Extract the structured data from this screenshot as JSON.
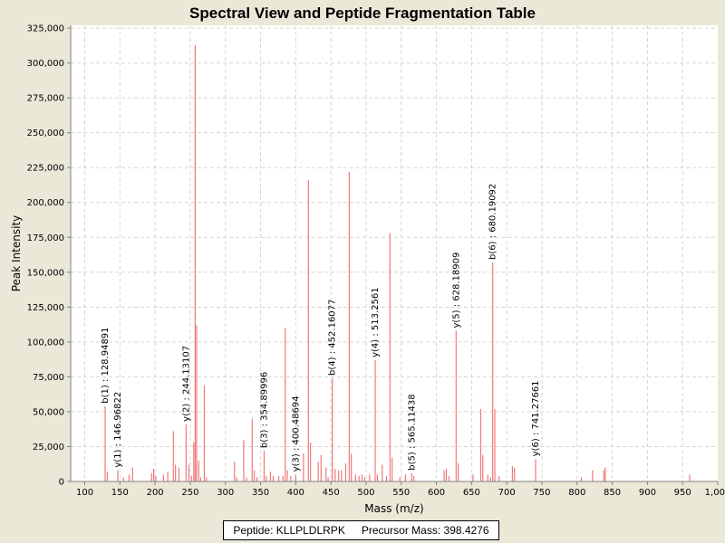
{
  "chart_data": {
    "type": "bar",
    "title": "Spectral View and Peptide Fragmentation Table",
    "xlabel": "Mass (m/z)",
    "ylabel": "Peak Intensity",
    "xlim": [
      80,
      1000
    ],
    "ylim": [
      0,
      327000
    ],
    "x_ticks": [
      100,
      150,
      200,
      250,
      300,
      350,
      400,
      450,
      500,
      550,
      600,
      650,
      700,
      750,
      800,
      850,
      900,
      950,
      1000
    ],
    "x_tick_labels": [
      "100",
      "150",
      "200",
      "250",
      "300",
      "350",
      "400",
      "450",
      "500",
      "550",
      "600",
      "650",
      "700",
      "750",
      "800",
      "850",
      "900",
      "950",
      "1,000"
    ],
    "y_ticks": [
      0,
      25000,
      50000,
      75000,
      100000,
      125000,
      150000,
      175000,
      200000,
      225000,
      250000,
      275000,
      300000,
      325000
    ],
    "y_tick_labels": [
      "0",
      "25,000",
      "50,000",
      "75,000",
      "100,000",
      "125,000",
      "150,000",
      "175,000",
      "200,000",
      "225,000",
      "250,000",
      "275,000",
      "300,000",
      "325,000"
    ],
    "series": [
      {
        "name": "peaks",
        "color": "#f07878",
        "peaks": [
          {
            "mz": 129,
            "intensity": 54000
          },
          {
            "mz": 132,
            "intensity": 7000
          },
          {
            "mz": 147,
            "intensity": 8000
          },
          {
            "mz": 155,
            "intensity": 3000
          },
          {
            "mz": 163,
            "intensity": 5000
          },
          {
            "mz": 168,
            "intensity": 10000
          },
          {
            "mz": 195,
            "intensity": 6000
          },
          {
            "mz": 198,
            "intensity": 9000
          },
          {
            "mz": 201,
            "intensity": 4000
          },
          {
            "mz": 212,
            "intensity": 5000
          },
          {
            "mz": 218,
            "intensity": 7000
          },
          {
            "mz": 226,
            "intensity": 36000
          },
          {
            "mz": 229,
            "intensity": 12000
          },
          {
            "mz": 234,
            "intensity": 10000
          },
          {
            "mz": 244,
            "intensity": 41000
          },
          {
            "mz": 248,
            "intensity": 12000
          },
          {
            "mz": 252,
            "intensity": 4000
          },
          {
            "mz": 255,
            "intensity": 28000
          },
          {
            "mz": 257,
            "intensity": 313000
          },
          {
            "mz": 259,
            "intensity": 112000
          },
          {
            "mz": 262,
            "intensity": 15000
          },
          {
            "mz": 265,
            "intensity": 3000
          },
          {
            "mz": 270,
            "intensity": 69000
          },
          {
            "mz": 273,
            "intensity": 3000
          },
          {
            "mz": 313,
            "intensity": 14000
          },
          {
            "mz": 316,
            "intensity": 3000
          },
          {
            "mz": 326,
            "intensity": 30000
          },
          {
            "mz": 330,
            "intensity": 3000
          },
          {
            "mz": 338,
            "intensity": 45000
          },
          {
            "mz": 341,
            "intensity": 8000
          },
          {
            "mz": 345,
            "intensity": 3000
          },
          {
            "mz": 355,
            "intensity": 22000
          },
          {
            "mz": 358,
            "intensity": 4000
          },
          {
            "mz": 364,
            "intensity": 7000
          },
          {
            "mz": 368,
            "intensity": 4000
          },
          {
            "mz": 376,
            "intensity": 4000
          },
          {
            "mz": 382,
            "intensity": 4000
          },
          {
            "mz": 385,
            "intensity": 110000
          },
          {
            "mz": 388,
            "intensity": 8000
          },
          {
            "mz": 393,
            "intensity": 4000
          },
          {
            "mz": 400,
            "intensity": 5000
          },
          {
            "mz": 411,
            "intensity": 20000
          },
          {
            "mz": 418,
            "intensity": 216000
          },
          {
            "mz": 421,
            "intensity": 28000
          },
          {
            "mz": 432,
            "intensity": 14000
          },
          {
            "mz": 436,
            "intensity": 19000
          },
          {
            "mz": 443,
            "intensity": 10000
          },
          {
            "mz": 446,
            "intensity": 3000
          },
          {
            "mz": 452,
            "intensity": 74000
          },
          {
            "mz": 456,
            "intensity": 9000
          },
          {
            "mz": 461,
            "intensity": 8000
          },
          {
            "mz": 465,
            "intensity": 8000
          },
          {
            "mz": 471,
            "intensity": 13000
          },
          {
            "mz": 476,
            "intensity": 222000
          },
          {
            "mz": 479,
            "intensity": 20000
          },
          {
            "mz": 485,
            "intensity": 5000
          },
          {
            "mz": 490,
            "intensity": 4000
          },
          {
            "mz": 494,
            "intensity": 5000
          },
          {
            "mz": 498,
            "intensity": 3000
          },
          {
            "mz": 505,
            "intensity": 5000
          },
          {
            "mz": 513,
            "intensity": 87000
          },
          {
            "mz": 516,
            "intensity": 5000
          },
          {
            "mz": 523,
            "intensity": 12000
          },
          {
            "mz": 529,
            "intensity": 4000
          },
          {
            "mz": 534,
            "intensity": 178000
          },
          {
            "mz": 537,
            "intensity": 17000
          },
          {
            "mz": 548,
            "intensity": 3000
          },
          {
            "mz": 556,
            "intensity": 5000
          },
          {
            "mz": 565,
            "intensity": 6000
          },
          {
            "mz": 568,
            "intensity": 4000
          },
          {
            "mz": 611,
            "intensity": 8000
          },
          {
            "mz": 614,
            "intensity": 9000
          },
          {
            "mz": 618,
            "intensity": 4000
          },
          {
            "mz": 628,
            "intensity": 108000
          },
          {
            "mz": 631,
            "intensity": 13000
          },
          {
            "mz": 652,
            "intensity": 5000
          },
          {
            "mz": 663,
            "intensity": 52000
          },
          {
            "mz": 666,
            "intensity": 19000
          },
          {
            "mz": 673,
            "intensity": 5000
          },
          {
            "mz": 677,
            "intensity": 3000
          },
          {
            "mz": 680,
            "intensity": 157000
          },
          {
            "mz": 683,
            "intensity": 52000
          },
          {
            "mz": 689,
            "intensity": 4000
          },
          {
            "mz": 708,
            "intensity": 11000
          },
          {
            "mz": 711,
            "intensity": 10000
          },
          {
            "mz": 741,
            "intensity": 16000
          },
          {
            "mz": 806,
            "intensity": 3000
          },
          {
            "mz": 822,
            "intensity": 8000
          },
          {
            "mz": 838,
            "intensity": 8000
          },
          {
            "mz": 840,
            "intensity": 10000
          },
          {
            "mz": 960,
            "intensity": 5000
          }
        ]
      }
    ],
    "annotations": [
      {
        "label": "b(1) : 128.94891",
        "mz": 129,
        "intensity": 54000
      },
      {
        "label": "y(1) : 146.96822",
        "mz": 147,
        "intensity": 8000
      },
      {
        "label": "y(2) : 244.13107",
        "mz": 244,
        "intensity": 41000
      },
      {
        "label": "b(3) : 354.89996",
        "mz": 355,
        "intensity": 22000
      },
      {
        "label": "y(3) : 400.48694",
        "mz": 400,
        "intensity": 5000
      },
      {
        "label": "b(4) : 452.16077",
        "mz": 452,
        "intensity": 74000
      },
      {
        "label": "y(4) : 513.2561",
        "mz": 513,
        "intensity": 87000
      },
      {
        "label": "b(5) : 565.11438",
        "mz": 565,
        "intensity": 6000
      },
      {
        "label": "y(5) : 628.18909",
        "mz": 628,
        "intensity": 108000
      },
      {
        "label": "b(6) : 680.19092",
        "mz": 680,
        "intensity": 157000
      },
      {
        "label": "y(6) : 741.27661",
        "mz": 741,
        "intensity": 16000
      }
    ],
    "legend": {
      "placement": "bottom-center",
      "peptide": "Peptide: KLLPLDLRPK",
      "precursor": "Precursor Mass: 398.4276"
    }
  }
}
